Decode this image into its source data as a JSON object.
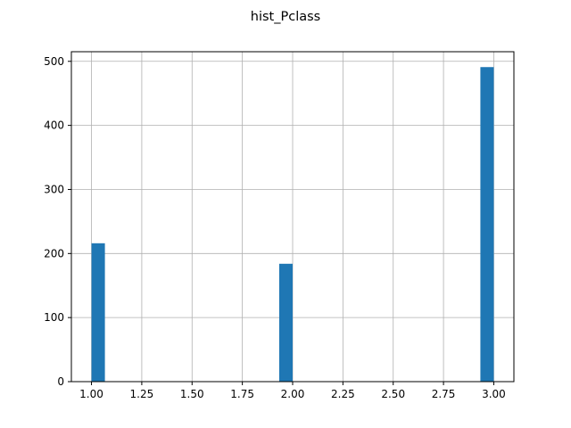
{
  "chart_data": {
    "type": "bar",
    "title": "hist_Pclass",
    "xlabel": "",
    "ylabel": "",
    "grid": true,
    "bar_color": "#1f77b4",
    "grid_color": "#b0b0b0",
    "xlim": [
      0.9,
      3.1
    ],
    "ylim": [
      0,
      515
    ],
    "xticks": [
      "1.00",
      "1.25",
      "1.50",
      "1.75",
      "2.00",
      "2.25",
      "2.50",
      "2.75",
      "3.00"
    ],
    "xtick_values": [
      1.0,
      1.25,
      1.5,
      1.75,
      2.0,
      2.25,
      2.5,
      2.75,
      3.0
    ],
    "yticks": [
      "0",
      "100",
      "200",
      "300",
      "400",
      "500"
    ],
    "ytick_values": [
      0,
      100,
      200,
      300,
      400,
      500
    ],
    "bins": [
      {
        "x_start": 1.0,
        "x_end": 1.0667,
        "value": 216
      },
      {
        "x_start": 1.9333,
        "x_end": 2.0,
        "value": 184
      },
      {
        "x_start": 2.9333,
        "x_end": 3.0,
        "value": 491
      }
    ]
  }
}
